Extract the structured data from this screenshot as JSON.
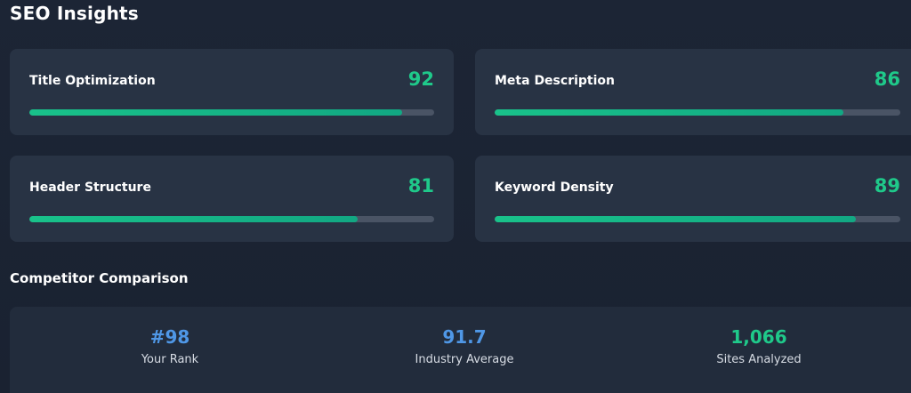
{
  "header": {
    "title": "SEO Insights"
  },
  "metrics": [
    {
      "label": "Title Optimization",
      "score": "92",
      "value": 92
    },
    {
      "label": "Meta Description",
      "score": "86",
      "value": 86
    },
    {
      "label": "Header Structure",
      "score": "81",
      "value": 81
    },
    {
      "label": "Keyword Density",
      "score": "89",
      "value": 89
    }
  ],
  "competitor": {
    "title": "Competitor Comparison",
    "rank": {
      "value": "#98",
      "label": "Your Rank"
    },
    "industry": {
      "value": "91.7",
      "label": "Industry Average"
    },
    "sites": {
      "value": "1,066",
      "label": "Sites Analyzed"
    }
  },
  "colors": {
    "accent_green": "#1fc98a",
    "accent_blue": "#4f97e6",
    "card_bg": "#283344",
    "page_bg": "#1b2433"
  }
}
